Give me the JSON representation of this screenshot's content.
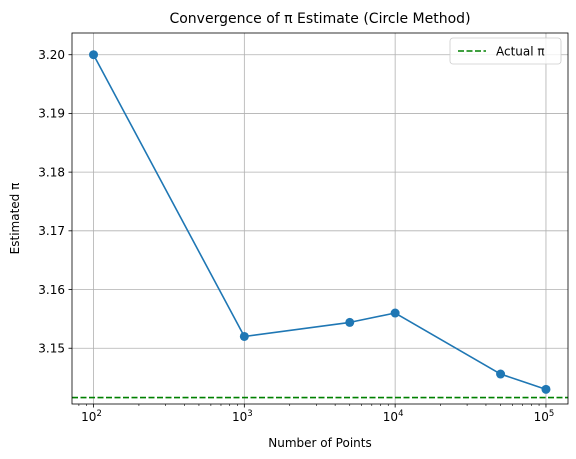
{
  "chart_data": {
    "type": "line",
    "title": "Convergence of π Estimate (Circle Method)",
    "xlabel": "Number of Points",
    "ylabel": "Estimated π",
    "x_scale": "log",
    "xlim": [
      72,
      140000
    ],
    "ylim": [
      3.1405,
      3.2037
    ],
    "x_ticks": [
      {
        "value": 100,
        "base": "10",
        "exp": "2"
      },
      {
        "value": 1000,
        "base": "10",
        "exp": "3"
      },
      {
        "value": 10000,
        "base": "10",
        "exp": "4"
      },
      {
        "value": 100000,
        "base": "10",
        "exp": "5"
      }
    ],
    "y_ticks": [
      {
        "value": 3.15,
        "label": "3.15"
      },
      {
        "value": 3.16,
        "label": "3.16"
      },
      {
        "value": 3.17,
        "label": "3.17"
      },
      {
        "value": 3.18,
        "label": "3.18"
      },
      {
        "value": 3.19,
        "label": "3.19"
      },
      {
        "value": 3.2,
        "label": "3.20"
      }
    ],
    "grid": true,
    "legend_position": "top-right",
    "series": [
      {
        "x": [
          100,
          1000,
          5000,
          10000,
          50000,
          100000
        ],
        "y": [
          3.2,
          3.152,
          3.1544,
          3.156,
          3.1456,
          3.143
        ],
        "color": "#1f77b4",
        "marker": "circle"
      }
    ],
    "reference_lines": [
      {
        "name": "Actual π",
        "y": 3.14159,
        "color": "#008000",
        "style": "dashed"
      }
    ]
  }
}
